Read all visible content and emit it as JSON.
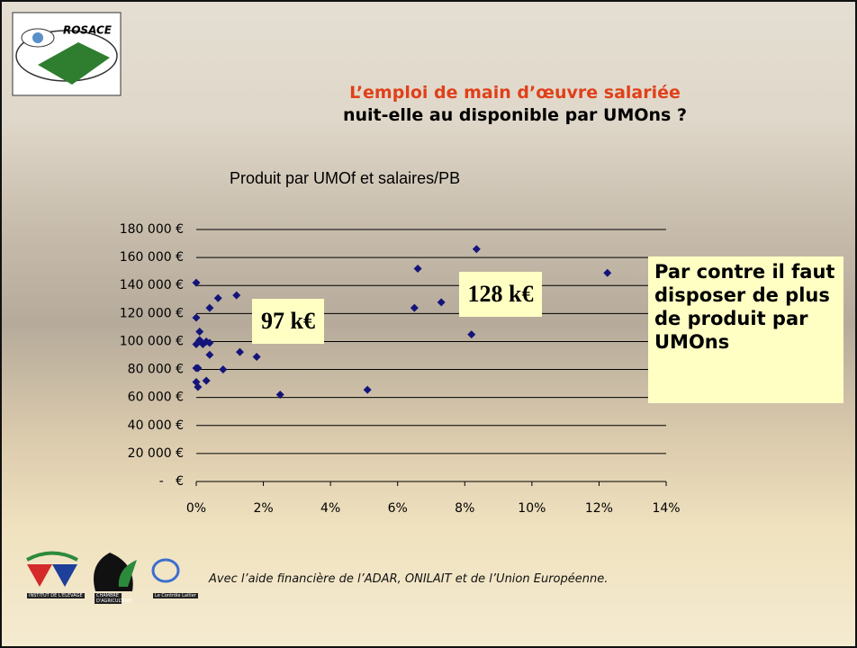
{
  "logo": "ROSACE",
  "header": {
    "title_line1": "L’emploi de main d’œuvre salariée",
    "title_line2": "nuit-elle au disponible par UMOns ?"
  },
  "chart_data": {
    "type": "scatter",
    "title": "Produit par UMOf et salaires/PB",
    "x": [
      0,
      0,
      0.1,
      0,
      0.1,
      0.2,
      0.3,
      0.4,
      0,
      0.05,
      0,
      0.05,
      0.3,
      0.4,
      0.4,
      0.65,
      1.2,
      1.3,
      0.8,
      1.8,
      2.5,
      5.1,
      6.5,
      6.6,
      7.3,
      8.2,
      8.35,
      12.25
    ],
    "values": [
      142000,
      117000,
      107000,
      98000,
      101000,
      98000,
      100000,
      99000,
      81000,
      81000,
      71000,
      67500,
      72000,
      90500,
      124000,
      131000,
      133000,
      92500,
      80000,
      89000,
      62000,
      65500,
      124000,
      152000,
      128000,
      105000,
      166000,
      149000
    ],
    "color": "#14147a",
    "xlim": [
      0,
      14
    ],
    "xticks": [
      {
        "value": 0,
        "label": "0%"
      },
      {
        "value": 2,
        "label": "2%"
      },
      {
        "value": 4,
        "label": "4%"
      },
      {
        "value": 6,
        "label": "6%"
      },
      {
        "value": 8,
        "label": "8%"
      },
      {
        "value": 10,
        "label": "10%"
      },
      {
        "value": 12,
        "label": "12%"
      },
      {
        "value": 14,
        "label": "14%"
      }
    ],
    "ylim": [
      0,
      180000
    ],
    "yticks": [
      {
        "value": 0,
        "label": "-   €"
      },
      {
        "value": 20000,
        "label": "20 000 €"
      },
      {
        "value": 40000,
        "label": "40 000 €"
      },
      {
        "value": 60000,
        "label": "60 000 €"
      },
      {
        "value": 80000,
        "label": "80 000 €"
      },
      {
        "value": 100000,
        "label": "100 000 €"
      },
      {
        "value": 120000,
        "label": "120 000 €"
      },
      {
        "value": 140000,
        "label": "140 000 €"
      },
      {
        "value": 160000,
        "label": "160 000 €"
      },
      {
        "value": 180000,
        "label": "180 000 €"
      }
    ],
    "grid": true,
    "annotations": [
      "97 k€",
      "128 k€"
    ],
    "note": "Par contre il faut disposer de plus de produit par UMOns"
  },
  "footer": {
    "credit": "Avec l’aide financière de l’ADAR, ONILAIT et de l’Union Européenne.",
    "logos": [
      "INSTITUT DE L'ELEVAGE",
      "CHAMBRE D'AGRICULTURE",
      "Le Contrôle Laitier"
    ]
  }
}
